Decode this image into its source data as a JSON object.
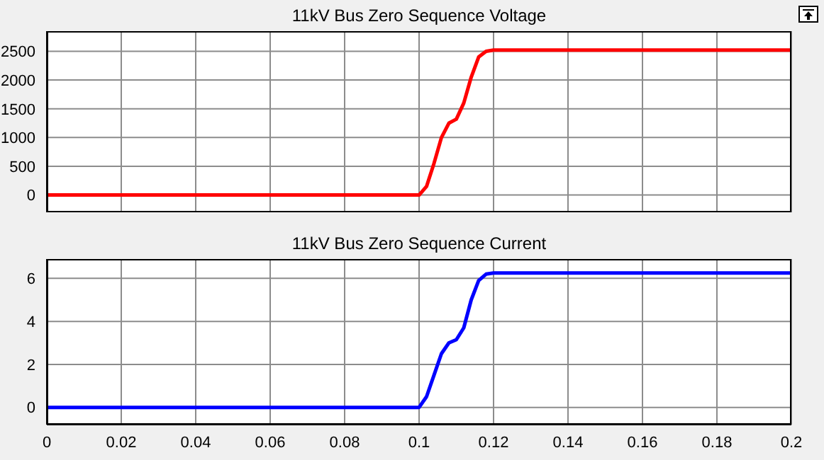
{
  "chart_data": [
    {
      "type": "line",
      "title": "11kV Bus Zero Sequence Voltage",
      "x": [
        0,
        0.1,
        0.102,
        0.104,
        0.106,
        0.108,
        0.11,
        0.112,
        0.114,
        0.116,
        0.118,
        0.12,
        0.2
      ],
      "series": [
        {
          "color": "#ff0000",
          "values": [
            0,
            0,
            150,
            550,
            1000,
            1250,
            1320,
            1600,
            2050,
            2400,
            2500,
            2520,
            2520
          ]
        }
      ],
      "xlim": [
        0,
        0.2
      ],
      "xticks": [
        0,
        0.02,
        0.04,
        0.06,
        0.08,
        0.1,
        0.12,
        0.14,
        0.16,
        0.18,
        0.2
      ],
      "ylim": [
        -300,
        2850
      ],
      "yticks": [
        0,
        500,
        1000,
        1500,
        2000,
        2500
      ],
      "grid": true,
      "tick_labels": "y",
      "marker": "none",
      "line_style": "solid"
    },
    {
      "type": "line",
      "title": "11kV Bus Zero Sequence Current",
      "x": [
        0,
        0.1,
        0.102,
        0.104,
        0.106,
        0.108,
        0.11,
        0.112,
        0.114,
        0.116,
        0.118,
        0.12,
        0.2
      ],
      "series": [
        {
          "color": "#0000ff",
          "values": [
            0,
            0,
            0.5,
            1.5,
            2.5,
            3.0,
            3.15,
            3.7,
            5.0,
            5.9,
            6.2,
            6.25,
            6.25
          ]
        }
      ],
      "xlim": [
        0,
        0.2
      ],
      "xticks": [
        0,
        0.02,
        0.04,
        0.06,
        0.08,
        0.1,
        0.12,
        0.14,
        0.16,
        0.18,
        0.2
      ],
      "ylim": [
        -0.8,
        6.9
      ],
      "yticks": [
        0,
        2,
        4,
        6
      ],
      "grid": true,
      "marker": "none",
      "line_style": "solid"
    }
  ]
}
